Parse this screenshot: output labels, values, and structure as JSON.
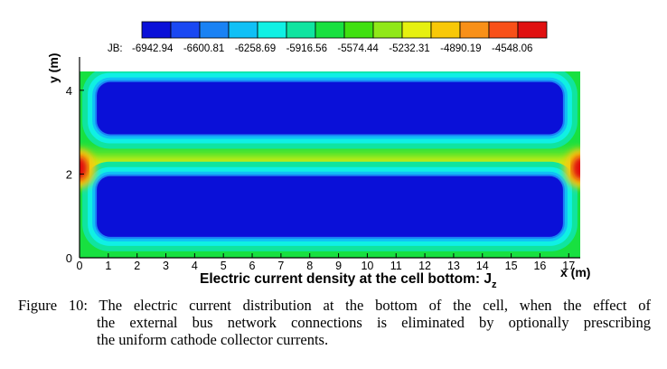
{
  "figure": {
    "legend": {
      "label": "JB:",
      "ticks": [
        "-6942.94",
        "-6600.81",
        "-6258.69",
        "-5916.56",
        "-5574.44",
        "-5232.31",
        "-4890.19",
        "-4548.06"
      ],
      "colors": [
        "#0a10d8",
        "#1a48f2",
        "#1a82f4",
        "#10c0f6",
        "#10f0e4",
        "#10e4a0",
        "#18e040",
        "#40e010",
        "#90e818",
        "#e6f010",
        "#f8c808",
        "#f89018",
        "#f85018",
        "#e01010"
      ]
    },
    "y_axis_label": "y (m)",
    "x_axis_label": "x (m)",
    "x_ticks": [
      "0",
      "1",
      "2",
      "3",
      "4",
      "5",
      "6",
      "7",
      "8",
      "9",
      "10",
      "11",
      "12",
      "13",
      "14",
      "15",
      "16",
      "17"
    ],
    "y_ticks": [
      "0",
      "2",
      "4"
    ],
    "subtitle_main": "Electric current density at the cell bottom: J",
    "subtitle_sub": "z"
  },
  "caption": {
    "line1": "Figure 10: The electric current distribution at the bottom of the cell, when the effect of",
    "line2": "the external bus network connections is eliminated by optionally prescribing",
    "line3": "the uniform cathode collector currents."
  },
  "chart_data": {
    "type": "heatmap",
    "title": "Electric current density at the cell bottom: Jz",
    "xlabel": "x (m)",
    "ylabel": "y (m)",
    "xlim": [
      0,
      17.4
    ],
    "ylim": [
      0,
      4.45
    ],
    "x_ticks": [
      0,
      1,
      2,
      3,
      4,
      5,
      6,
      7,
      8,
      9,
      10,
      11,
      12,
      13,
      14,
      15,
      16,
      17
    ],
    "y_ticks": [
      0,
      2,
      4
    ],
    "colorbar_label": "JB",
    "colorbar_levels": [
      -6942.94,
      -6600.81,
      -6258.69,
      -5916.56,
      -5574.44,
      -5232.31,
      -4890.19,
      -4548.06
    ],
    "regions": [
      {
        "name": "upper collector band",
        "x": [
          0.6,
          16.8
        ],
        "y": [
          2.95,
          4.2
        ],
        "approx_value": -6942.94
      },
      {
        "name": "lower collector band",
        "x": [
          0.6,
          16.8
        ],
        "y": [
          0.5,
          1.95
        ],
        "approx_value": -6942.94
      },
      {
        "name": "central strip",
        "x": [
          0,
          17.4
        ],
        "y": [
          2.0,
          2.6
        ],
        "approx_value": -5232.31
      },
      {
        "name": "left edge hotspot",
        "x": [
          0,
          0.5
        ],
        "y": [
          1.9,
          2.5
        ],
        "approx_value": -4548.06
      },
      {
        "name": "right edge hotspot",
        "x": [
          16.9,
          17.4
        ],
        "y": [
          1.9,
          2.5
        ],
        "approx_value": -4548.06
      }
    ]
  }
}
